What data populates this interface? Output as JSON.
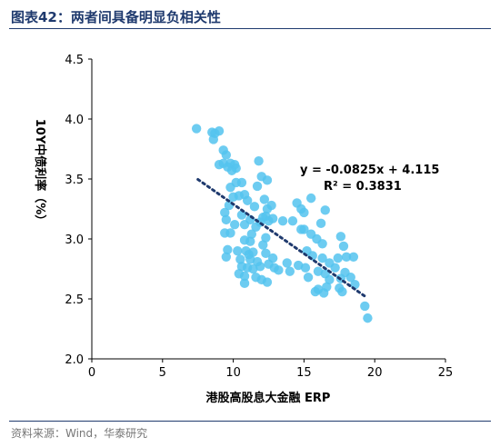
{
  "figure_title": "图表42：两者间具备明显负相关性",
  "source_note": "资料来源：Wind，华泰研究",
  "colors": {
    "point": "#53c3ef",
    "trendline": "#1f3a6e",
    "title": "#1f3a6e",
    "rule": "#1f3a6e",
    "source": "#777777"
  },
  "chart_data": {
    "type": "scatter",
    "title": "",
    "xlabel": "港股高股息大金融 ERP",
    "ylabel": "10Y中债利率（%）",
    "xlim": [
      0,
      25
    ],
    "ylim": [
      2.0,
      4.5
    ],
    "xticks": [
      "0",
      "5",
      "10",
      "15",
      "20",
      "25"
    ],
    "yticks": [
      "2.0",
      "2.5",
      "3.0",
      "3.5",
      "4.0",
      "4.5"
    ],
    "grid": false,
    "annotation": {
      "equation": "y = -0.0825x + 4.115",
      "r2": "R² = 0.3831"
    },
    "trendline": {
      "slope": -0.0825,
      "intercept": 4.115,
      "x_range": [
        7.5,
        19.3
      ]
    },
    "points": [
      [
        7.4,
        3.92
      ],
      [
        8.5,
        3.89
      ],
      [
        8.6,
        3.83
      ],
      [
        9.0,
        3.9
      ],
      [
        8.7,
        3.88
      ],
      [
        9.3,
        3.74
      ],
      [
        9.5,
        3.7
      ],
      [
        9.0,
        3.62
      ],
      [
        9.3,
        3.63
      ],
      [
        9.8,
        3.63
      ],
      [
        10.1,
        3.62
      ],
      [
        9.6,
        3.6
      ],
      [
        10.2,
        3.59
      ],
      [
        9.9,
        3.57
      ],
      [
        11.8,
        3.65
      ],
      [
        12.0,
        3.52
      ],
      [
        12.4,
        3.49
      ],
      [
        10.2,
        3.47
      ],
      [
        10.6,
        3.47
      ],
      [
        9.8,
        3.43
      ],
      [
        11.7,
        3.44
      ],
      [
        10.8,
        3.37
      ],
      [
        10.4,
        3.36
      ],
      [
        10.0,
        3.35
      ],
      [
        11.0,
        3.32
      ],
      [
        12.2,
        3.33
      ],
      [
        12.7,
        3.28
      ],
      [
        11.5,
        3.27
      ],
      [
        12.4,
        3.25
      ],
      [
        12.3,
        3.19
      ],
      [
        9.7,
        3.28
      ],
      [
        9.4,
        3.22
      ],
      [
        10.6,
        3.2
      ],
      [
        11.2,
        3.16
      ],
      [
        12.1,
        3.18
      ],
      [
        12.5,
        3.15
      ],
      [
        13.5,
        3.15
      ],
      [
        11.9,
        3.14
      ],
      [
        9.5,
        3.16
      ],
      [
        10.8,
        3.12
      ],
      [
        11.6,
        3.1
      ],
      [
        10.1,
        3.12
      ],
      [
        12.8,
        3.17
      ],
      [
        9.8,
        3.05
      ],
      [
        9.4,
        3.05
      ],
      [
        11.3,
        3.04
      ],
      [
        12.3,
        3.01
      ],
      [
        10.8,
        2.99
      ],
      [
        11.2,
        2.98
      ],
      [
        12.1,
        2.95
      ],
      [
        14.5,
        3.3
      ],
      [
        14.8,
        3.25
      ],
      [
        15.0,
        3.22
      ],
      [
        15.5,
        3.34
      ],
      [
        16.5,
        3.24
      ],
      [
        16.2,
        3.13
      ],
      [
        14.2,
        3.15
      ],
      [
        14.8,
        3.08
      ],
      [
        15.5,
        3.04
      ],
      [
        15.9,
        3.0
      ],
      [
        15.0,
        3.08
      ],
      [
        16.3,
        2.96
      ],
      [
        17.6,
        3.02
      ],
      [
        10.3,
        2.9
      ],
      [
        9.6,
        2.91
      ],
      [
        10.9,
        2.9
      ],
      [
        11.4,
        2.89
      ],
      [
        11.1,
        2.87
      ],
      [
        12.3,
        2.88
      ],
      [
        12.8,
        2.84
      ],
      [
        9.5,
        2.85
      ],
      [
        10.5,
        2.83
      ],
      [
        11.2,
        2.83
      ],
      [
        11.7,
        2.81
      ],
      [
        12.5,
        2.79
      ],
      [
        12.9,
        2.76
      ],
      [
        13.8,
        2.8
      ],
      [
        10.6,
        2.77
      ],
      [
        11.0,
        2.76
      ],
      [
        11.4,
        2.75
      ],
      [
        11.9,
        2.77
      ],
      [
        13.2,
        2.74
      ],
      [
        14.0,
        2.73
      ],
      [
        10.4,
        2.71
      ],
      [
        10.8,
        2.69
      ],
      [
        11.6,
        2.68
      ],
      [
        12.0,
        2.66
      ],
      [
        12.4,
        2.64
      ],
      [
        10.8,
        2.63
      ],
      [
        15.2,
        2.9
      ],
      [
        15.6,
        2.86
      ],
      [
        16.3,
        2.84
      ],
      [
        16.8,
        2.8
      ],
      [
        17.4,
        2.84
      ],
      [
        18.0,
        2.85
      ],
      [
        18.5,
        2.85
      ],
      [
        17.8,
        2.94
      ],
      [
        14.6,
        2.78
      ],
      [
        15.1,
        2.76
      ],
      [
        16.0,
        2.73
      ],
      [
        16.5,
        2.71
      ],
      [
        17.2,
        2.76
      ],
      [
        17.9,
        2.72
      ],
      [
        18.3,
        2.68
      ],
      [
        15.3,
        2.68
      ],
      [
        16.8,
        2.66
      ],
      [
        17.6,
        2.67
      ],
      [
        16.6,
        2.6
      ],
      [
        16.0,
        2.58
      ],
      [
        15.8,
        2.56
      ],
      [
        16.4,
        2.55
      ],
      [
        17.5,
        2.59
      ],
      [
        17.7,
        2.56
      ],
      [
        18.6,
        2.62
      ],
      [
        19.3,
        2.44
      ],
      [
        19.5,
        2.34
      ]
    ]
  }
}
